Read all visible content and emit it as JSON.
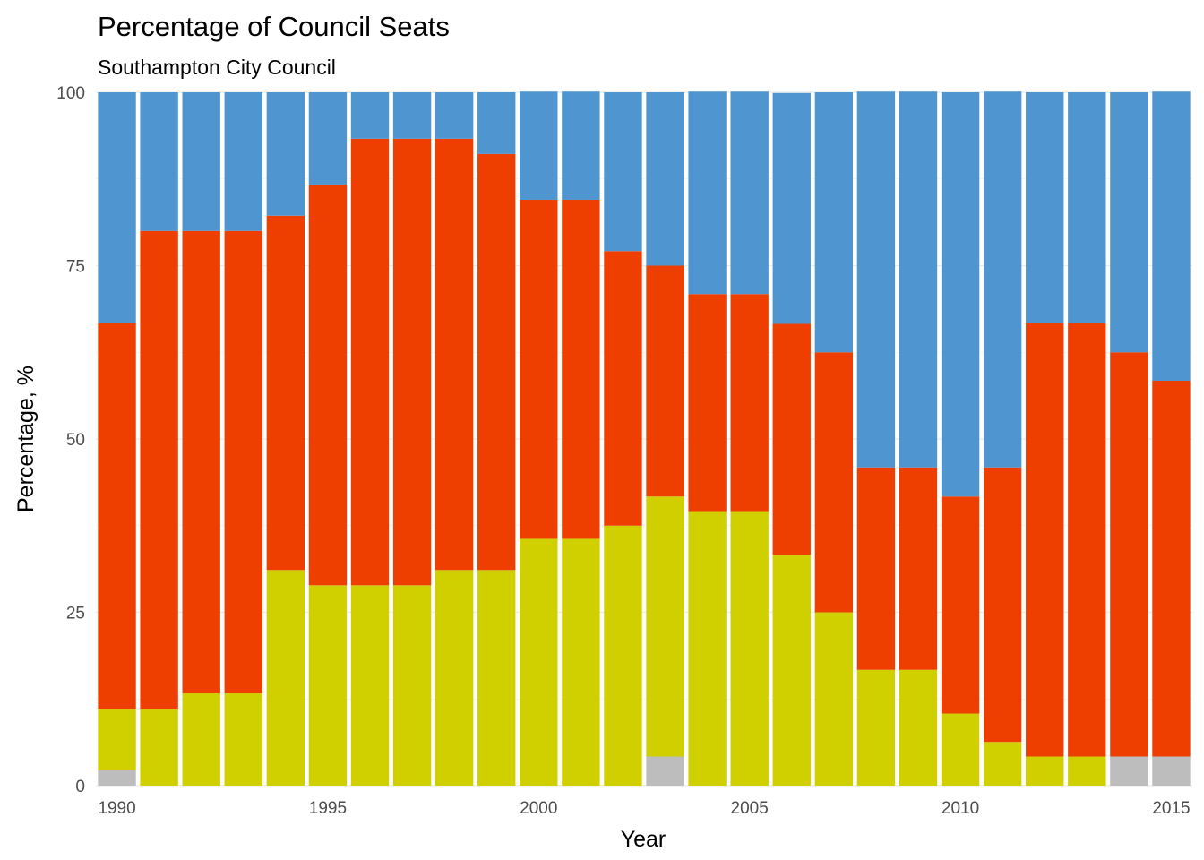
{
  "chart_data": {
    "type": "bar",
    "stacked": true,
    "title": "Percentage of Council Seats",
    "subtitle": "Southampton City Council",
    "xlabel": "Year",
    "ylabel": "Percentage, %",
    "ylim": [
      0,
      100
    ],
    "y_ticks": [
      "0",
      "25",
      "50",
      "75",
      "100"
    ],
    "x_ticks": [
      "1990",
      "1995",
      "2000",
      "2005",
      "2010",
      "2015"
    ],
    "grid": true,
    "legend": "none",
    "categories": [
      "1990",
      "1991",
      "1992",
      "1993",
      "1994",
      "1995",
      "1996",
      "1997",
      "1998",
      "1999",
      "2000",
      "2001",
      "2002",
      "2003",
      "2004",
      "2005",
      "2006",
      "2007",
      "2008",
      "2009",
      "2010",
      "2011",
      "2012",
      "2013",
      "2014",
      "2015"
    ],
    "series": [
      {
        "color": "#bdbdbd",
        "values": [
          2.2,
          0,
          0,
          0,
          0,
          0,
          0,
          0,
          0,
          0,
          0,
          0,
          0,
          4.2,
          0,
          0,
          0,
          0,
          0,
          0,
          0,
          0,
          0,
          0,
          4.2,
          4.2
        ]
      },
      {
        "color": "#d0cf00",
        "values": [
          8.9,
          11.1,
          13.3,
          13.3,
          31.1,
          28.9,
          28.9,
          28.9,
          31.1,
          31.1,
          35.6,
          35.6,
          37.5,
          37.5,
          39.6,
          39.6,
          33.3,
          25.0,
          16.7,
          16.7,
          10.4,
          6.3,
          4.2,
          4.2,
          0,
          0
        ]
      },
      {
        "color": "#ee3f00",
        "values": [
          55.6,
          68.9,
          66.7,
          66.7,
          51.1,
          57.8,
          64.4,
          64.4,
          62.2,
          60.0,
          48.9,
          48.9,
          39.6,
          33.3,
          31.3,
          31.3,
          33.3,
          37.5,
          29.2,
          29.2,
          31.3,
          39.6,
          62.5,
          62.5,
          58.3,
          54.2
        ]
      },
      {
        "color": "#4f95d0",
        "values": [
          33.3,
          20.0,
          20.0,
          20.0,
          17.8,
          13.3,
          6.7,
          6.7,
          6.7,
          8.9,
          15.6,
          15.6,
          22.9,
          25.0,
          29.2,
          29.2,
          33.3,
          37.5,
          54.2,
          54.2,
          58.3,
          54.2,
          33.3,
          33.3,
          37.5,
          41.7
        ]
      }
    ]
  }
}
